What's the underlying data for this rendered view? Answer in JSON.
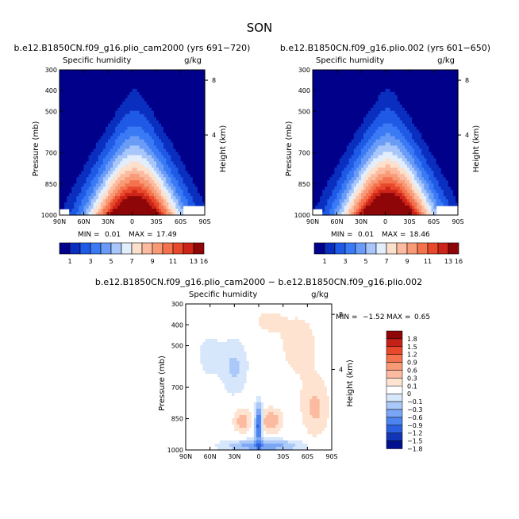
{
  "title": "SON",
  "chart_data": [
    {
      "type": "heatmap",
      "id": "panel1",
      "title": "b.e12.B1850CN.f09_g16.plio_cam2000 (yrs 691−720)",
      "left_label": "Specific humidity",
      "right_label": "g/kg",
      "ylabel": "Pressure (mb)",
      "y2label": "Height (km)",
      "x_ticks": [
        "90N",
        "60N",
        "30N",
        "0",
        "30S",
        "60S",
        "90S"
      ],
      "x_range": [
        90,
        -90
      ],
      "y_ticks": [
        "300",
        "400",
        "500",
        "700",
        "850",
        "1000"
      ],
      "y_range": [
        300,
        1000
      ],
      "y2_ticks": [
        "8",
        "4"
      ],
      "min_label": "MIN =",
      "min_value": "0.01",
      "max_label": "MAX =",
      "max_value": "17.49",
      "max": 17.49,
      "colorbar_labels": [
        "1",
        "3",
        "5",
        "7",
        "9",
        "11",
        "13",
        "16"
      ]
    },
    {
      "type": "heatmap",
      "id": "panel2",
      "title": "b.e12.B1850CN.f09_g16.plio.002 (yrs 601−650)",
      "left_label": "Specific humidity",
      "right_label": "g/kg",
      "ylabel": "Pressure (mb)",
      "y2label": "Height (km)",
      "x_ticks": [
        "90N",
        "60N",
        "30N",
        "0",
        "30S",
        "60S",
        "90S"
      ],
      "x_range": [
        90,
        -90
      ],
      "y_ticks": [
        "300",
        "400",
        "500",
        "700",
        "850",
        "1000"
      ],
      "y_range": [
        300,
        1000
      ],
      "y2_ticks": [
        "8",
        "4"
      ],
      "min_label": "MIN =",
      "min_value": "0.01",
      "max_label": "MAX =",
      "max_value": "18.46",
      "max": 18.46,
      "colorbar_labels": [
        "1",
        "3",
        "5",
        "7",
        "9",
        "11",
        "13",
        "16"
      ]
    },
    {
      "type": "heatmap",
      "id": "panel3",
      "title": "b.e12.B1850CN.f09_g16.plio_cam2000 − b.e12.B1850CN.f09_g16.plio.002",
      "left_label": "Specific humidity",
      "right_label": "g/kg",
      "ylabel": "Pressure (mb)",
      "y2label": "Height (km)",
      "x_ticks": [
        "90N",
        "60N",
        "30N",
        "0",
        "30S",
        "60S",
        "90S"
      ],
      "x_range": [
        90,
        -90
      ],
      "y_ticks": [
        "300",
        "400",
        "500",
        "700",
        "850",
        "1000"
      ],
      "y_range": [
        300,
        1000
      ],
      "y2_ticks": [
        "8",
        "4"
      ],
      "min_label": "MIN =",
      "min_value": "−1.52",
      "max_label": "MAX =",
      "max_value": "0.65",
      "colorbar_labels": [
        "1.8",
        "1.5",
        "1.2",
        "0.9",
        "0.6",
        "0.3",
        "0.1",
        "0",
        "−0.1",
        "−0.3",
        "−0.6",
        "−0.9",
        "−1.2",
        "−1.5",
        "−1.8"
      ]
    }
  ],
  "colors": {
    "abs_scale": [
      "#00008b",
      "#0a2fbf",
      "#1f5ae6",
      "#3b7af5",
      "#6a9cf7",
      "#a8c6fa",
      "#e3eefd",
      "#fde0cc",
      "#fcbba0",
      "#f99a76",
      "#f4724e",
      "#e8482c",
      "#cc2418",
      "#8e0608"
    ],
    "diff_scale": [
      "#8e0608",
      "#c42218",
      "#e8482c",
      "#f4724e",
      "#f99a76",
      "#fcbba0",
      "#fde3d0",
      "#ffffff",
      "#d6e6fb",
      "#aac8f8",
      "#7aa6f5",
      "#4d84f0",
      "#2a60e0",
      "#1235b8",
      "#00108f"
    ]
  }
}
